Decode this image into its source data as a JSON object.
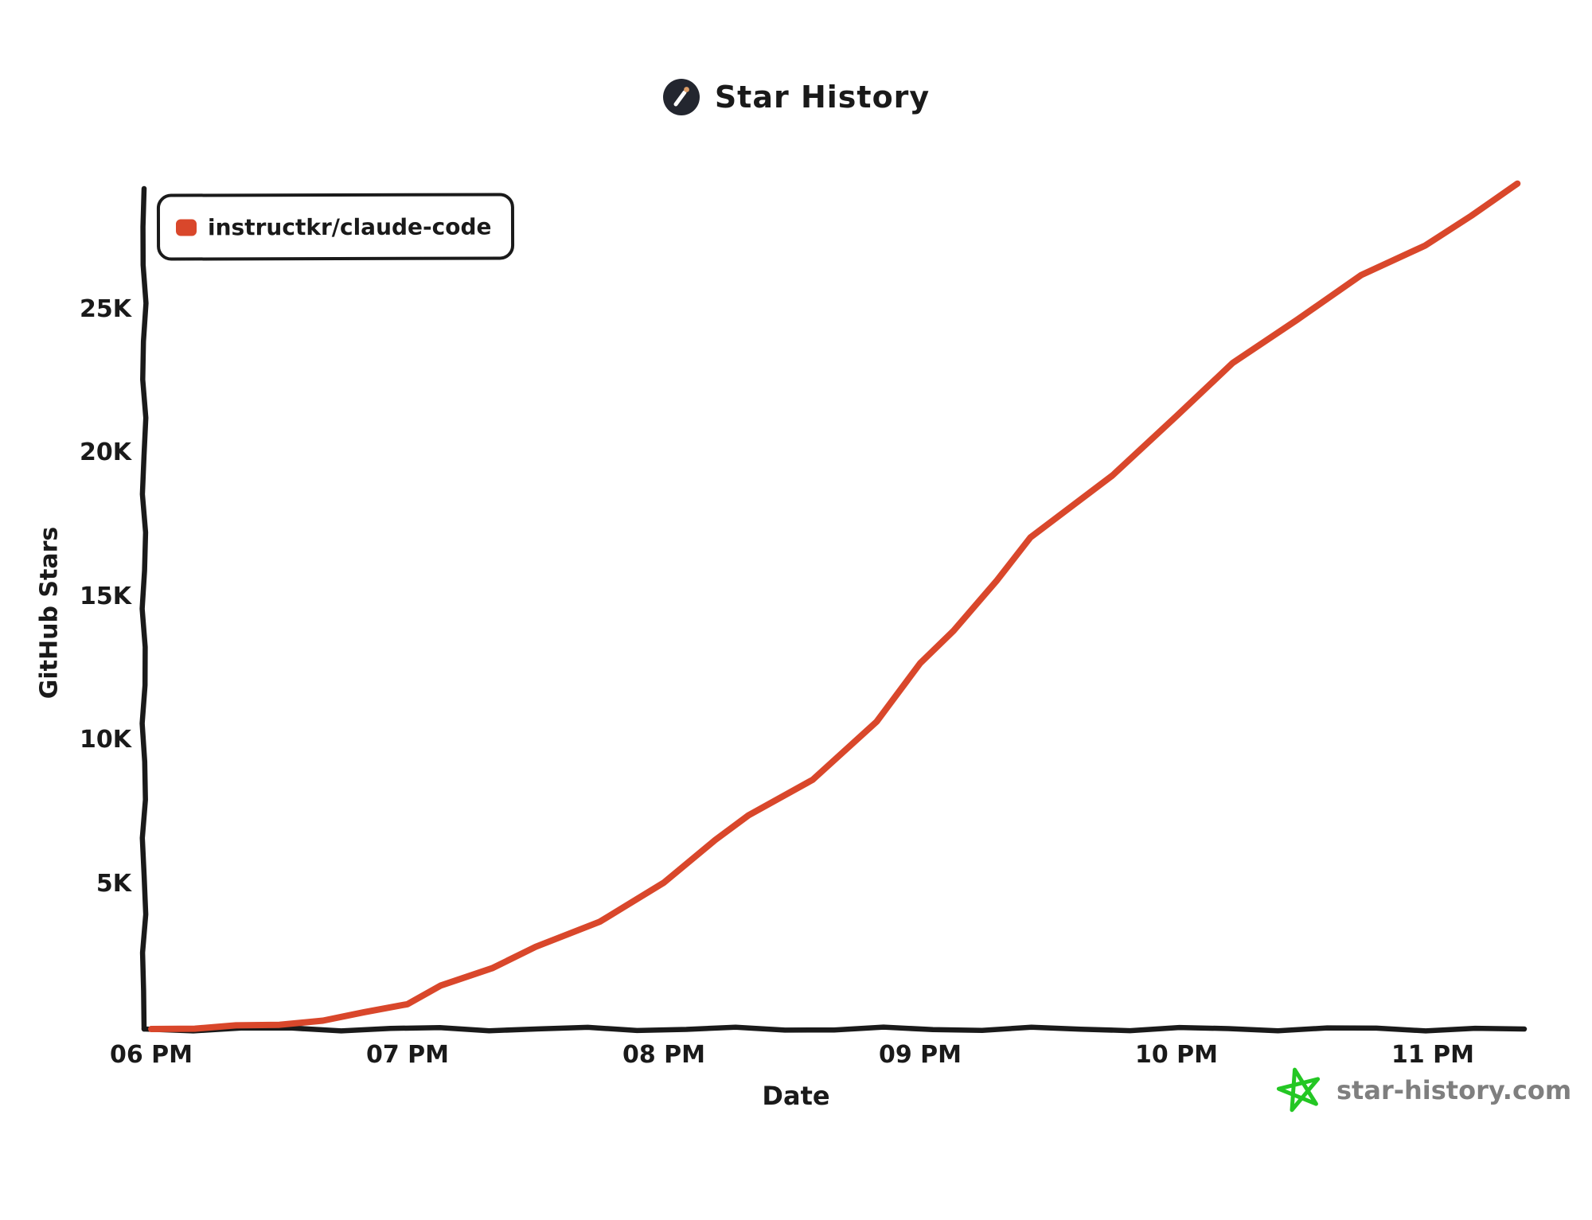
{
  "header": {
    "title": "Star History"
  },
  "legend": {
    "label": "instructkr/claude-code",
    "marker_color": "#D9472B"
  },
  "axes": {
    "y_title": "GitHub Stars",
    "x_title": "Date",
    "y_ticks": [
      {
        "value": 5000,
        "label": "5K"
      },
      {
        "value": 10000,
        "label": "10K"
      },
      {
        "value": 15000,
        "label": "15K"
      },
      {
        "value": 20000,
        "label": "20K"
      },
      {
        "value": 25000,
        "label": "25K"
      }
    ],
    "x_ticks": [
      {
        "hour": 18,
        "label": "06 PM"
      },
      {
        "hour": 19,
        "label": "07 PM"
      },
      {
        "hour": 20,
        "label": "08 PM"
      },
      {
        "hour": 21,
        "label": "09 PM"
      },
      {
        "hour": 22,
        "label": "10 PM"
      },
      {
        "hour": 23,
        "label": "11 PM"
      }
    ]
  },
  "watermark": {
    "site": "star-history.com",
    "star_icon_color": "#24C724",
    "text_color": "#7F7F7F"
  },
  "colors": {
    "line": "#D9472B",
    "axis": "#1a1a1a",
    "logo_bg": "#23262F",
    "logo_wand": "#ffffff",
    "logo_wand_tip": "#DE9E68"
  },
  "chart_data": {
    "type": "line",
    "title": "Star History",
    "xlabel": "Date",
    "ylabel": "GitHub Stars",
    "x_unit": "hour_of_day_decimal_pm",
    "xlim": [
      18.0,
      23.4
    ],
    "ylim": [
      0,
      29500
    ],
    "grid": false,
    "legend_position": "top-left",
    "x_tick_labels": [
      "06 PM",
      "07 PM",
      "08 PM",
      "09 PM",
      "10 PM",
      "11 PM"
    ],
    "y_tick_labels": [
      "5K",
      "10K",
      "15K",
      "20K",
      "25K"
    ],
    "series": [
      {
        "name": "instructkr/claude-code",
        "color": "#D9472B",
        "points": [
          [
            18.0,
            0
          ],
          [
            18.17,
            40
          ],
          [
            18.33,
            90
          ],
          [
            18.5,
            170
          ],
          [
            18.67,
            300
          ],
          [
            18.83,
            550
          ],
          [
            19.0,
            900
          ],
          [
            19.13,
            1500
          ],
          [
            19.33,
            2100
          ],
          [
            19.5,
            2900
          ],
          [
            19.75,
            3700
          ],
          [
            20.0,
            5100
          ],
          [
            20.2,
            6600
          ],
          [
            20.33,
            7400
          ],
          [
            20.58,
            8700
          ],
          [
            20.83,
            10700
          ],
          [
            21.0,
            12700
          ],
          [
            21.13,
            13900
          ],
          [
            21.3,
            15600
          ],
          [
            21.43,
            17100
          ],
          [
            21.75,
            19300
          ],
          [
            22.0,
            21300
          ],
          [
            22.22,
            23200
          ],
          [
            22.47,
            24700
          ],
          [
            22.72,
            26200
          ],
          [
            22.97,
            27300
          ],
          [
            23.15,
            28300
          ],
          [
            23.33,
            29400
          ]
        ]
      }
    ]
  }
}
